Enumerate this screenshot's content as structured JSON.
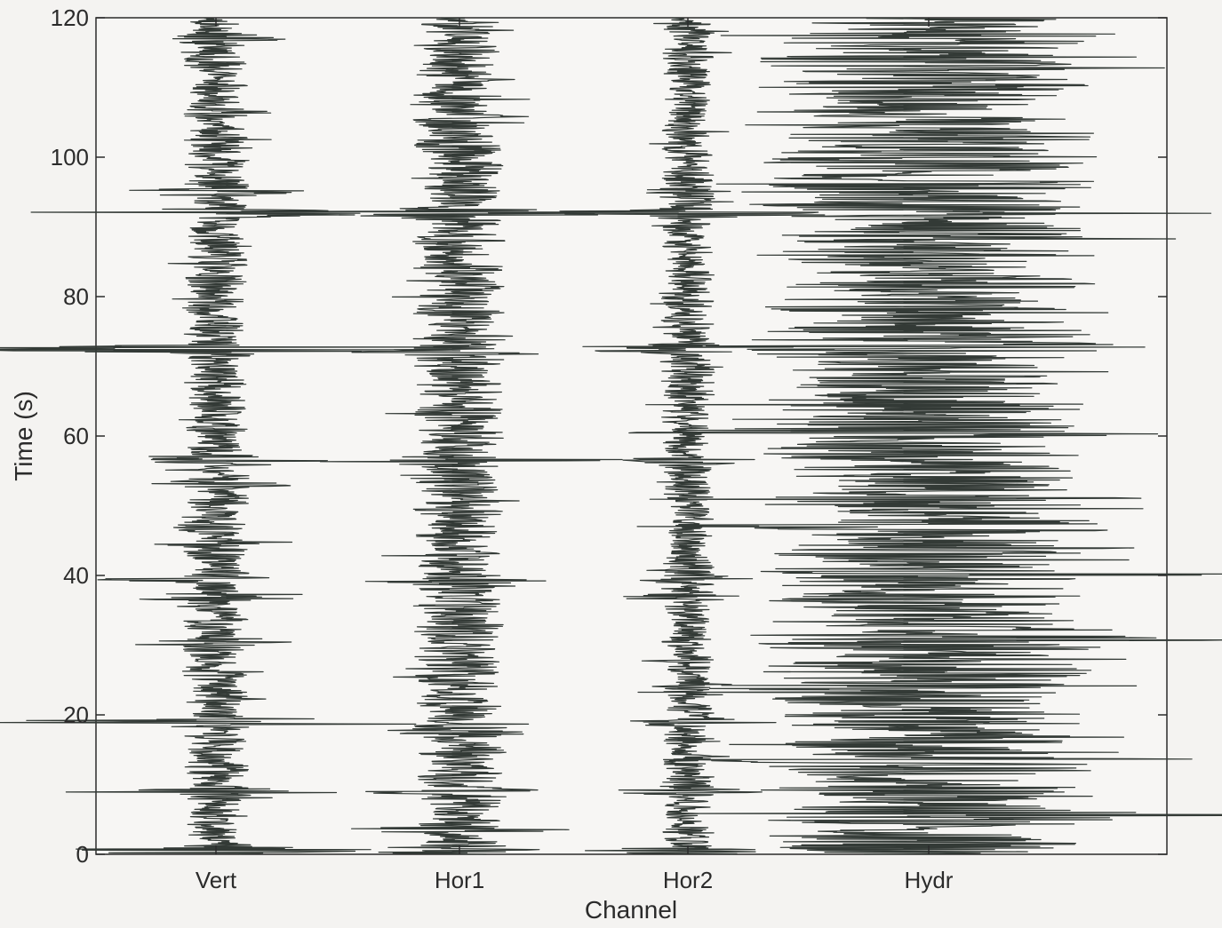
{
  "chart_data": {
    "type": "line",
    "title": "",
    "xlabel": "Channel",
    "ylabel": "Time (s)",
    "ylim": [
      0,
      120
    ],
    "yticks": [
      0,
      20,
      40,
      60,
      80,
      100,
      120
    ],
    "categories": [
      "Vert",
      "Hor1",
      "Hor2",
      "Hydr"
    ],
    "grid": false,
    "trace_color": "#333a36",
    "axis_color": "#2b2b2b",
    "series": [
      {
        "name": "Vert",
        "base_amplitude": 0.025,
        "events": [
          {
            "t": 0.5,
            "amp": 0.2
          },
          {
            "t": 9,
            "amp": 0.12
          },
          {
            "t": 19,
            "amp": 0.22
          },
          {
            "t": 30.5,
            "amp": 0.05
          },
          {
            "t": 37,
            "amp": 0.1
          },
          {
            "t": 39.5,
            "amp": 0.09
          },
          {
            "t": 44.5,
            "amp": 0.04
          },
          {
            "t": 53,
            "amp": 0.05
          },
          {
            "t": 56.5,
            "amp": 0.09
          },
          {
            "t": 72.5,
            "amp": 0.27
          },
          {
            "t": 92,
            "amp": 0.16
          },
          {
            "t": 95,
            "amp": 0.09
          },
          {
            "t": 117,
            "amp": 0.05
          }
        ]
      },
      {
        "name": "Hor1",
        "base_amplitude": 0.035,
        "events": [
          {
            "t": 0.5,
            "amp": 0.1
          },
          {
            "t": 3.5,
            "amp": 0.07
          },
          {
            "t": 9,
            "amp": 0.06
          },
          {
            "t": 17.5,
            "amp": 0.05
          },
          {
            "t": 39,
            "amp": 0.06
          },
          {
            "t": 56.5,
            "amp": 0.12
          },
          {
            "t": 72,
            "amp": 0.08
          },
          {
            "t": 92,
            "amp": 0.2
          }
        ]
      },
      {
        "name": "Hor2",
        "base_amplitude": 0.02,
        "events": [
          {
            "t": 0.5,
            "amp": 0.1
          },
          {
            "t": 9,
            "amp": 0.06
          },
          {
            "t": 19,
            "amp": 0.09
          },
          {
            "t": 37,
            "amp": 0.07
          },
          {
            "t": 39.5,
            "amp": 0.05
          },
          {
            "t": 56.5,
            "amp": 0.05
          },
          {
            "t": 72.5,
            "amp": 0.14
          },
          {
            "t": 92,
            "amp": 0.18
          },
          {
            "t": 95,
            "amp": 0.05
          }
        ]
      },
      {
        "name": "Hydr",
        "base_amplitude": 0.13,
        "events": [
          {
            "t": 5.5,
            "amp": 0.18
          },
          {
            "t": 13.5,
            "amp": 0.15
          },
          {
            "t": 24,
            "amp": 0.16
          },
          {
            "t": 31,
            "amp": 0.2
          },
          {
            "t": 47,
            "amp": 0.14
          },
          {
            "t": 60.5,
            "amp": 0.15
          },
          {
            "t": 73,
            "amp": 0.17
          },
          {
            "t": 117.5,
            "amp": 0.12
          }
        ]
      }
    ]
  }
}
